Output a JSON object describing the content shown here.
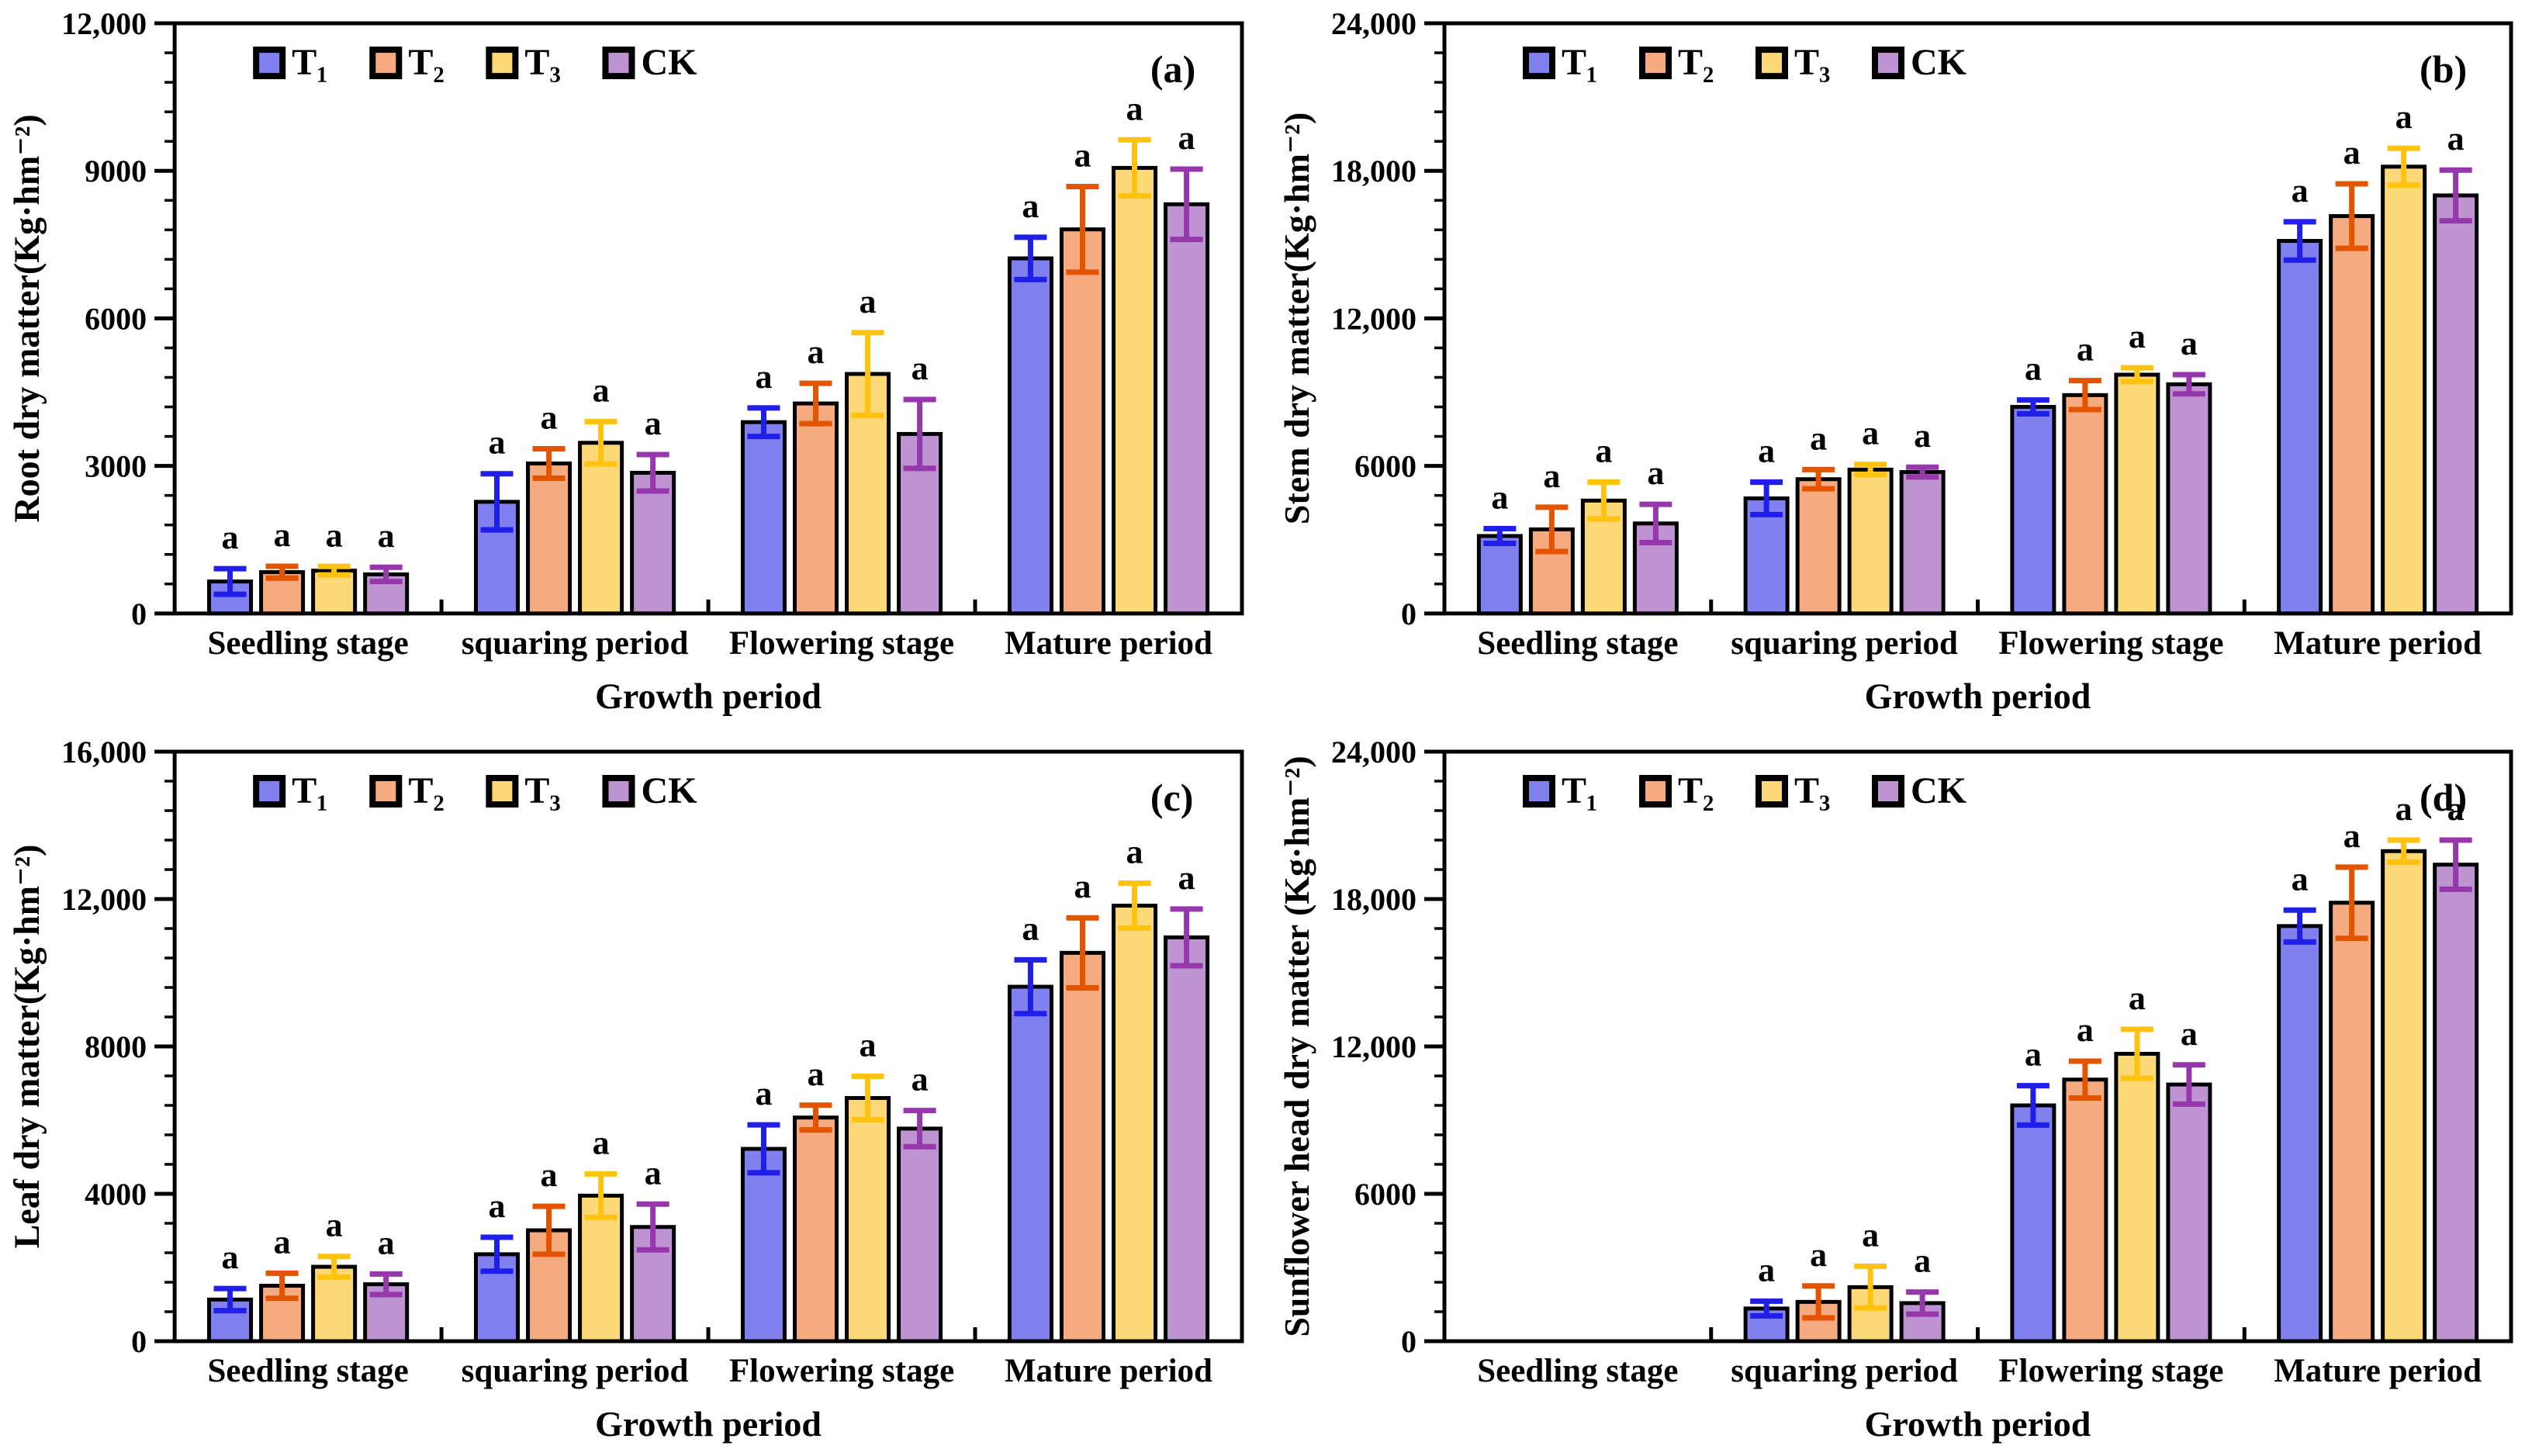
{
  "figure": {
    "background": "#ffffff",
    "significance_letter": "a",
    "axis_color": "#000000"
  },
  "legend": {
    "items": [
      {
        "label": "T₁",
        "fill": "#8080f0"
      },
      {
        "label": "T₂",
        "fill": "#f5aa80"
      },
      {
        "label": "T₃",
        "fill": "#fdd877"
      },
      {
        "label": "CK",
        "fill": "#bd93d2"
      }
    ]
  },
  "chart_data": [
    {
      "type": "bar",
      "panel_label": "(a)",
      "ylabel": "Root dry matter(Kg·hm⁻²)",
      "xlabel": "Growth period",
      "categories": [
        "Seedling stage",
        "squaring period",
        "Flowering stage",
        "Mature period"
      ],
      "ylim": [
        0,
        12000
      ],
      "yticks": [
        0,
        3000,
        6000,
        9000,
        12000
      ],
      "ytick_labels": [
        "0",
        "3000",
        "6000",
        "9000",
        "12,000"
      ],
      "grid": false,
      "legend_position": "top-inside",
      "sig_letter": "a",
      "series": [
        {
          "name": "T₁",
          "fill": "#8080f0",
          "error_color": "#1f1fe8",
          "values": [
            650,
            2270,
            3890,
            7220
          ],
          "errors": [
            260,
            570,
            290,
            430
          ]
        },
        {
          "name": "T₂",
          "fill": "#f5aa80",
          "error_color": "#e25400",
          "values": [
            840,
            3050,
            4270,
            7810
          ],
          "errors": [
            120,
            300,
            410,
            870
          ]
        },
        {
          "name": "T₃",
          "fill": "#fdd877",
          "error_color": "#ffc20e",
          "values": [
            870,
            3470,
            4870,
            9060
          ],
          "errors": [
            85,
            430,
            840,
            570
          ]
        },
        {
          "name": "CK",
          "fill": "#bd93d2",
          "error_color": "#9638ab",
          "values": [
            795,
            2860,
            3650,
            8320
          ],
          "errors": [
            145,
            370,
            700,
            715
          ]
        }
      ]
    },
    {
      "type": "bar",
      "panel_label": "(b)",
      "ylabel": "Stem dry matter(Kg·hm⁻²)",
      "xlabel": "Growth period",
      "categories": [
        "Seedling stage",
        "squaring period",
        "Flowering stage",
        "Mature period"
      ],
      "ylim": [
        0,
        24000
      ],
      "yticks": [
        0,
        6000,
        12000,
        18000,
        24000
      ],
      "ytick_labels": [
        "0",
        "6000",
        "12,000",
        "18,000",
        "24,000"
      ],
      "grid": false,
      "legend_position": "top-inside",
      "sig_letter": "a",
      "series": [
        {
          "name": "T₁",
          "fill": "#8080f0",
          "error_color": "#1f1fe8",
          "values": [
            3150,
            4680,
            8400,
            15150
          ],
          "errors": [
            300,
            660,
            280,
            780
          ]
        },
        {
          "name": "T₂",
          "fill": "#f5aa80",
          "error_color": "#e25400",
          "values": [
            3420,
            5460,
            8880,
            16160
          ],
          "errors": [
            900,
            390,
            590,
            1310
          ]
        },
        {
          "name": "T₃",
          "fill": "#fdd877",
          "error_color": "#ffc20e",
          "values": [
            4590,
            5850,
            9710,
            18170
          ],
          "errors": [
            750,
            210,
            280,
            750
          ]
        },
        {
          "name": "CK",
          "fill": "#bd93d2",
          "error_color": "#9638ab",
          "values": [
            3660,
            5750,
            9320,
            17000
          ],
          "errors": [
            780,
            200,
            390,
            1030
          ]
        }
      ]
    },
    {
      "type": "bar",
      "panel_label": "(c)",
      "ylabel": "Leaf dry matter(Kg·hm⁻²)",
      "xlabel": "Growth period",
      "categories": [
        "Seedling stage",
        "squaring period",
        "Flowering stage",
        "Mature period"
      ],
      "ylim": [
        0,
        16000
      ],
      "yticks": [
        0,
        4000,
        8000,
        12000,
        16000
      ],
      "ytick_labels": [
        "0",
        "4000",
        "8000",
        "12,000",
        "16,000"
      ],
      "grid": false,
      "legend_position": "top-inside",
      "sig_letter": "a",
      "series": [
        {
          "name": "T₁",
          "fill": "#8080f0",
          "error_color": "#1f1fe8",
          "values": [
            1130,
            2360,
            5220,
            9620
          ],
          "errors": [
            300,
            460,
            650,
            730
          ]
        },
        {
          "name": "T₂",
          "fill": "#f5aa80",
          "error_color": "#e25400",
          "values": [
            1505,
            3010,
            6070,
            10540
          ],
          "errors": [
            340,
            650,
            335,
            950
          ]
        },
        {
          "name": "T₃",
          "fill": "#fdd877",
          "error_color": "#ffc20e",
          "values": [
            2020,
            3950,
            6600,
            11820
          ],
          "errors": [
            280,
            590,
            590,
            610
          ]
        },
        {
          "name": "CK",
          "fill": "#bd93d2",
          "error_color": "#9638ab",
          "values": [
            1545,
            3100,
            5770,
            10960
          ],
          "errors": [
            280,
            620,
            490,
            770
          ]
        }
      ]
    },
    {
      "type": "bar",
      "panel_label": "(d)",
      "ylabel": "Sunflower head dry matter (Kg·hm⁻²)",
      "xlabel": "Growth period",
      "categories": [
        "Seedling stage",
        "squaring period",
        "Flowering stage",
        "Mature period"
      ],
      "ylim": [
        0,
        24000
      ],
      "yticks": [
        0,
        6000,
        12000,
        18000,
        24000
      ],
      "ytick_labels": [
        "0",
        "6000",
        "12,000",
        "18,000",
        "24,000"
      ],
      "grid": false,
      "legend_position": "top-inside",
      "sig_letter": "a",
      "series": [
        {
          "name": "T₁",
          "fill": "#8080f0",
          "error_color": "#1f1fe8",
          "values": [
            null,
            1330,
            9600,
            16900
          ],
          "errors": [
            null,
            300,
            800,
            650
          ]
        },
        {
          "name": "T₂",
          "fill": "#f5aa80",
          "error_color": "#e25400",
          "values": [
            null,
            1600,
            10650,
            17850
          ],
          "errors": [
            null,
            650,
            750,
            1450
          ]
        },
        {
          "name": "T₃",
          "fill": "#fdd877",
          "error_color": "#ffc20e",
          "values": [
            null,
            2200,
            11700,
            19950
          ],
          "errors": [
            null,
            850,
            1000,
            450
          ]
        },
        {
          "name": "CK",
          "fill": "#bd93d2",
          "error_color": "#9638ab",
          "values": [
            null,
            1550,
            10450,
            19400
          ],
          "errors": [
            null,
            450,
            800,
            1000
          ]
        }
      ]
    }
  ]
}
